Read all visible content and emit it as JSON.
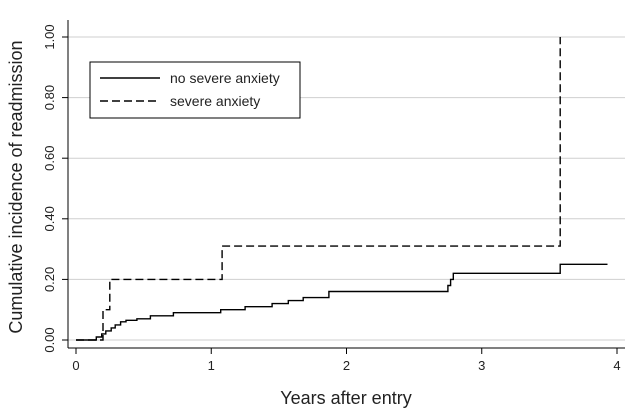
{
  "chart_data": {
    "type": "line",
    "title": "",
    "xlabel": "Years after entry",
    "ylabel": "Cumulative incidence of readmission",
    "xlim": [
      0,
      4
    ],
    "ylim": [
      0,
      1
    ],
    "x_ticks": [
      0,
      1,
      2,
      3,
      4
    ],
    "x_tick_labels": [
      "0",
      "1",
      "2",
      "3",
      "4"
    ],
    "y_ticks": [
      0,
      0.2,
      0.4,
      0.6,
      0.8,
      1.0
    ],
    "y_tick_labels": [
      "0.00",
      "0.20",
      "0.40",
      "0.60",
      "0.80",
      "1.00"
    ],
    "grid": true,
    "legend": {
      "position": "top-left",
      "framed": true
    },
    "step": true,
    "series": [
      {
        "name": "no severe anxiety",
        "style": "solid",
        "color": "#000000",
        "x": [
          0,
          0.15,
          0.19,
          0.22,
          0.26,
          0.29,
          0.33,
          0.37,
          0.45,
          0.55,
          0.72,
          1.07,
          1.25,
          1.45,
          1.57,
          1.68,
          1.87,
          2.75,
          2.77,
          2.79,
          3.58,
          3.93
        ],
        "y": [
          0,
          0.01,
          0.02,
          0.03,
          0.04,
          0.05,
          0.06,
          0.065,
          0.07,
          0.08,
          0.09,
          0.1,
          0.11,
          0.12,
          0.13,
          0.14,
          0.16,
          0.18,
          0.2,
          0.22,
          0.25,
          0.25
        ]
      },
      {
        "name": "severe anxiety",
        "style": "dashed",
        "color": "#000000",
        "x": [
          0,
          0.2,
          0.25,
          1.08,
          3.58
        ],
        "y": [
          0,
          0.1,
          0.2,
          0.31,
          1.0
        ]
      }
    ]
  }
}
